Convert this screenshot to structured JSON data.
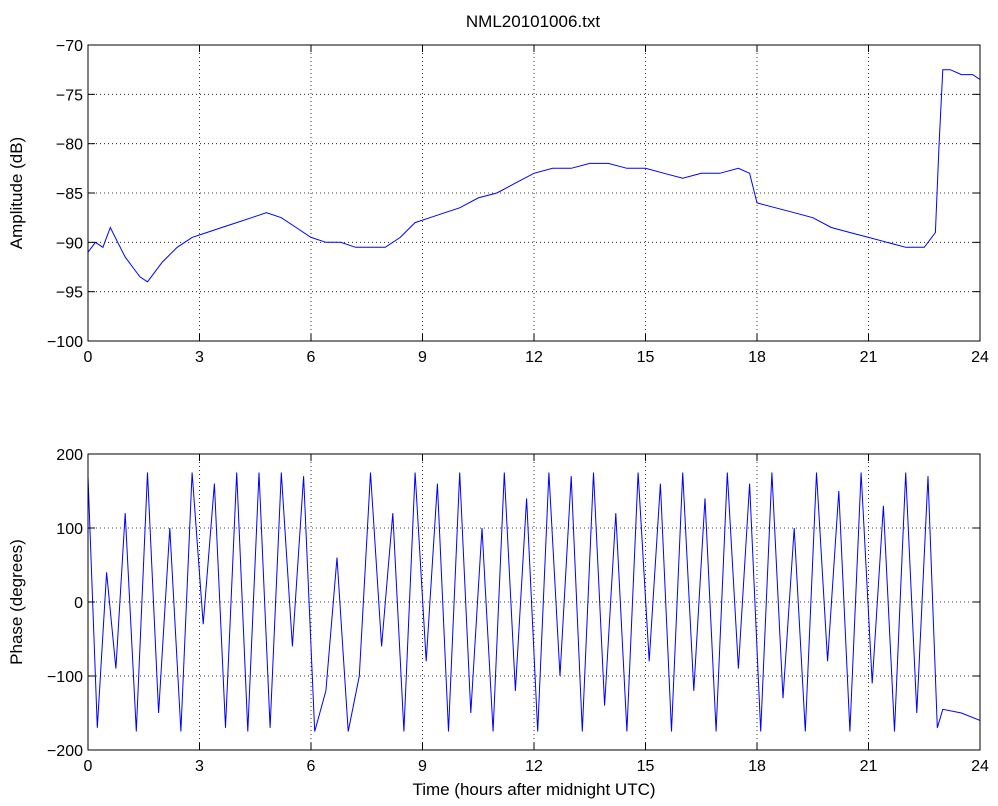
{
  "figure": {
    "title": "NML20101006.txt",
    "line_color": "#0000ff",
    "background": "#ffffff"
  },
  "chart_data": [
    {
      "type": "line",
      "title": "NML20101006.txt",
      "xlabel": "",
      "ylabel": "Amplitude (dB)",
      "xlim": [
        0,
        24
      ],
      "ylim": [
        -100,
        -70
      ],
      "xticks": [
        0,
        3,
        6,
        9,
        12,
        15,
        18,
        21,
        24
      ],
      "yticks": [
        -70,
        -75,
        -80,
        -85,
        -90,
        -95,
        -100
      ],
      "grid": true,
      "series": [
        {
          "color": "#0000ff",
          "x": [
            0,
            0.2,
            0.4,
            0.6,
            0.8,
            1.0,
            1.2,
            1.4,
            1.6,
            1.8,
            2.0,
            2.4,
            2.8,
            3.2,
            3.6,
            4.0,
            4.4,
            4.8,
            5.2,
            5.6,
            6.0,
            6.4,
            6.8,
            7.2,
            7.6,
            8.0,
            8.4,
            8.8,
            9.2,
            9.6,
            10.0,
            10.5,
            11.0,
            11.5,
            12.0,
            12.5,
            13.0,
            13.5,
            14.0,
            14.5,
            15.0,
            15.5,
            16.0,
            16.5,
            17.0,
            17.5,
            17.8,
            18.0,
            18.5,
            19.0,
            19.5,
            20.0,
            20.5,
            21.0,
            21.5,
            22.0,
            22.5,
            22.8,
            22.9,
            23.0,
            23.2,
            23.5,
            23.8,
            24.0
          ],
          "y": [
            -91,
            -90,
            -90.5,
            -88.5,
            -90,
            -91.5,
            -92.5,
            -93.5,
            -94,
            -93,
            -92,
            -90.5,
            -89.5,
            -89,
            -88.5,
            -88,
            -87.5,
            -87,
            -87.5,
            -88.5,
            -89.5,
            -90,
            -90,
            -90.5,
            -90.5,
            -90.5,
            -89.5,
            -88,
            -87.5,
            -87,
            -86.5,
            -85.5,
            -85,
            -84,
            -83,
            -82.5,
            -82.5,
            -82,
            -82,
            -82.5,
            -82.5,
            -83,
            -83.5,
            -83,
            -83,
            -82.5,
            -83,
            -86,
            -86.5,
            -87,
            -87.5,
            -88.5,
            -89,
            -89.5,
            -90,
            -90.5,
            -90.5,
            -89,
            -80,
            -72.5,
            -72.5,
            -73,
            -73,
            -73.5
          ]
        }
      ]
    },
    {
      "type": "line",
      "title": "",
      "xlabel": "Time (hours after midnight UTC)",
      "ylabel": "Phase (degrees)",
      "xlim": [
        0,
        24
      ],
      "ylim": [
        -200,
        200
      ],
      "xticks": [
        0,
        3,
        6,
        9,
        12,
        15,
        18,
        21,
        24
      ],
      "yticks": [
        200,
        100,
        0,
        -100,
        -200
      ],
      "grid": true,
      "series": [
        {
          "color": "#0000ff",
          "x": [
            0,
            0.25,
            0.5,
            0.75,
            1.0,
            1.3,
            1.6,
            1.9,
            2.2,
            2.5,
            2.8,
            3.1,
            3.4,
            3.7,
            4.0,
            4.3,
            4.6,
            4.9,
            5.2,
            5.5,
            5.8,
            6.1,
            6.4,
            6.7,
            7.0,
            7.3,
            7.6,
            7.9,
            8.2,
            8.5,
            8.8,
            9.1,
            9.4,
            9.7,
            10.0,
            10.3,
            10.6,
            10.9,
            11.2,
            11.5,
            11.8,
            12.1,
            12.4,
            12.7,
            13.0,
            13.3,
            13.6,
            13.9,
            14.2,
            14.5,
            14.8,
            15.1,
            15.4,
            15.7,
            16.0,
            16.3,
            16.6,
            16.9,
            17.2,
            17.5,
            17.8,
            18.1,
            18.4,
            18.7,
            19.0,
            19.3,
            19.6,
            19.9,
            20.2,
            20.5,
            20.8,
            21.1,
            21.4,
            21.7,
            22.0,
            22.3,
            22.6,
            22.85,
            23.0,
            23.5,
            24.0
          ],
          "y": [
            170,
            -170,
            40,
            -90,
            120,
            -175,
            175,
            -150,
            100,
            -175,
            175,
            -30,
            160,
            -170,
            175,
            -175,
            175,
            -170,
            175,
            -60,
            170,
            -175,
            -120,
            60,
            -175,
            -100,
            175,
            -60,
            120,
            -175,
            175,
            -80,
            160,
            -175,
            175,
            -150,
            100,
            -175,
            175,
            -120,
            140,
            -175,
            175,
            -100,
            170,
            -175,
            175,
            -140,
            120,
            -175,
            175,
            -80,
            160,
            -175,
            175,
            -120,
            140,
            -175,
            175,
            -90,
            160,
            -175,
            175,
            -130,
            100,
            -175,
            175,
            -80,
            150,
            -175,
            175,
            -110,
            130,
            -175,
            175,
            -150,
            170,
            -170,
            -145,
            -150,
            -160
          ]
        }
      ]
    }
  ]
}
